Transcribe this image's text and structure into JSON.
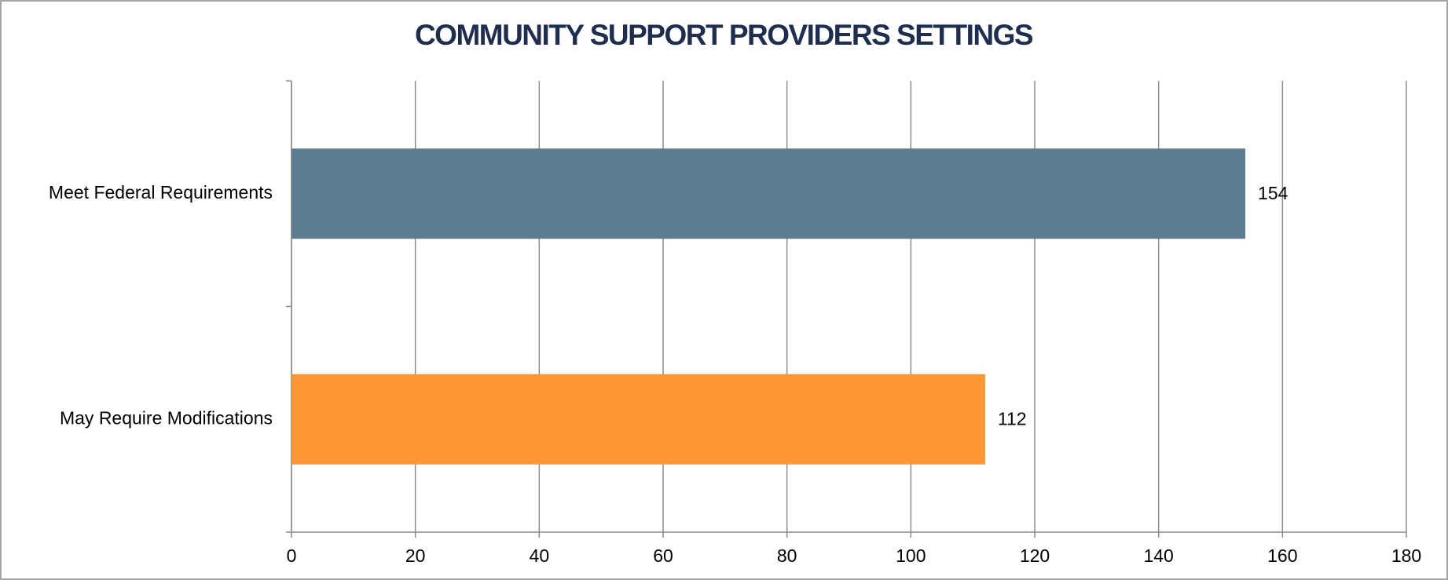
{
  "chart_data": {
    "type": "hbar",
    "title": "COMMUNITY SUPPORT PROVIDERS SETTINGS",
    "categories": [
      "Meet Federal Requirements",
      "May Require Modifications"
    ],
    "values": [
      154,
      112
    ],
    "colors": [
      "#5b7f91",
      "#ff9533"
    ],
    "xlim": [
      0,
      180
    ],
    "xticks": [
      0,
      20,
      40,
      60,
      80,
      100,
      120,
      140,
      160,
      180
    ],
    "grid": true
  }
}
